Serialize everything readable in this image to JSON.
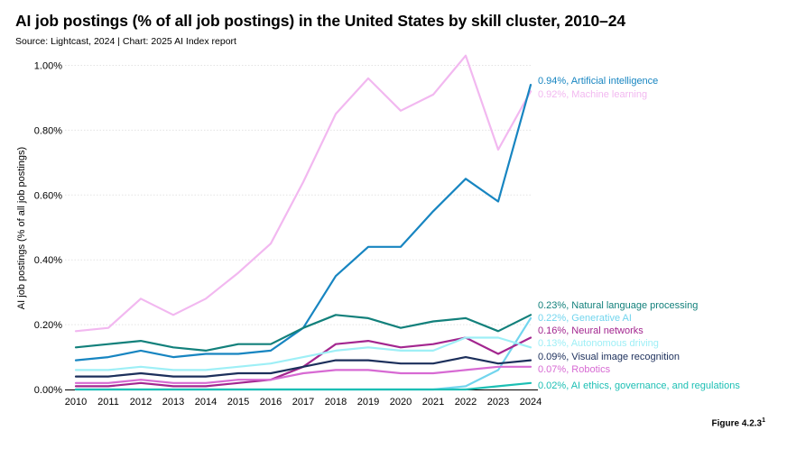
{
  "title": "AI job postings (% of all job postings) in the United States by skill cluster, 2010–24",
  "subtitle": "Source: Lightcast, 2024 | Chart: 2025 AI Index report",
  "footnote": "Figure 4.2.3",
  "footnote_sup": "1",
  "chart_data": {
    "type": "line",
    "title": "AI job postings (% of all job postings) in the United States by skill cluster, 2010–24",
    "xlabel": "",
    "ylabel": "AI job postings (% of all job postings)",
    "x": [
      2010,
      2011,
      2012,
      2013,
      2014,
      2015,
      2016,
      2017,
      2018,
      2019,
      2020,
      2021,
      2022,
      2023,
      2024
    ],
    "ylim": [
      0,
      1.05
    ],
    "yticks": [
      0,
      0.2,
      0.4,
      0.6,
      0.8,
      1.0
    ],
    "ytick_labels": [
      "0.00%",
      "0.20%",
      "0.40%",
      "0.60%",
      "0.80%",
      "1.00%"
    ],
    "grid": "horizontal",
    "series": [
      {
        "name": "Machine learning",
        "label": "0.92%, Machine learning",
        "color": "#f2b8f0",
        "values": [
          0.18,
          0.19,
          0.28,
          0.23,
          0.28,
          0.36,
          0.45,
          0.64,
          0.85,
          0.96,
          0.86,
          0.91,
          1.03,
          0.74,
          0.92
        ]
      },
      {
        "name": "Artificial intelligence",
        "label": "0.94%, Artificial intelligence",
        "color": "#1785c1",
        "values": [
          0.09,
          0.1,
          0.12,
          0.1,
          0.11,
          0.11,
          0.12,
          0.19,
          0.35,
          0.44,
          0.44,
          0.55,
          0.65,
          0.58,
          0.94
        ]
      },
      {
        "name": "Natural language processing",
        "label": "0.23%, Natural language processing",
        "color": "#12807b",
        "values": [
          0.13,
          0.14,
          0.15,
          0.13,
          0.12,
          0.14,
          0.14,
          0.19,
          0.23,
          0.22,
          0.19,
          0.21,
          0.22,
          0.18,
          0.23
        ]
      },
      {
        "name": "Generative AI",
        "label": "0.22%, Generative AI",
        "color": "#72d5ee",
        "values": [
          0.0,
          0.0,
          0.0,
          0.0,
          0.0,
          0.0,
          0.0,
          0.0,
          0.0,
          0.0,
          0.0,
          0.0,
          0.01,
          0.06,
          0.22
        ]
      },
      {
        "name": "Neural networks",
        "label": "0.16%, Neural networks",
        "color": "#a3268f",
        "values": [
          0.01,
          0.01,
          0.02,
          0.01,
          0.01,
          0.02,
          0.03,
          0.07,
          0.14,
          0.15,
          0.13,
          0.14,
          0.16,
          0.11,
          0.16
        ]
      },
      {
        "name": "Autonomous driving",
        "label": "0.13%, Autonomous driving",
        "color": "#9eeff6",
        "values": [
          0.06,
          0.06,
          0.07,
          0.06,
          0.06,
          0.07,
          0.08,
          0.1,
          0.12,
          0.13,
          0.12,
          0.12,
          0.16,
          0.16,
          0.13
        ]
      },
      {
        "name": "Visual image recognition",
        "label": "0.09%, Visual image recognition",
        "color": "#1c2f5b",
        "values": [
          0.04,
          0.04,
          0.05,
          0.04,
          0.04,
          0.05,
          0.05,
          0.07,
          0.09,
          0.09,
          0.08,
          0.08,
          0.1,
          0.08,
          0.09
        ]
      },
      {
        "name": "Robotics",
        "label": "0.07%, Robotics",
        "color": "#d76ad3",
        "values": [
          0.02,
          0.02,
          0.03,
          0.02,
          0.02,
          0.03,
          0.03,
          0.05,
          0.06,
          0.06,
          0.05,
          0.05,
          0.06,
          0.07,
          0.07
        ]
      },
      {
        "name": "AI ethics, governance, and regulations",
        "label": "0.02%, AI ethics, governance, and regulations",
        "color": "#1cbfb4",
        "values": [
          0.0,
          0.0,
          0.0,
          0.0,
          0.0,
          0.0,
          0.0,
          0.0,
          0.0,
          0.0,
          0.0,
          0.0,
          0.0,
          0.01,
          0.02
        ]
      }
    ]
  }
}
